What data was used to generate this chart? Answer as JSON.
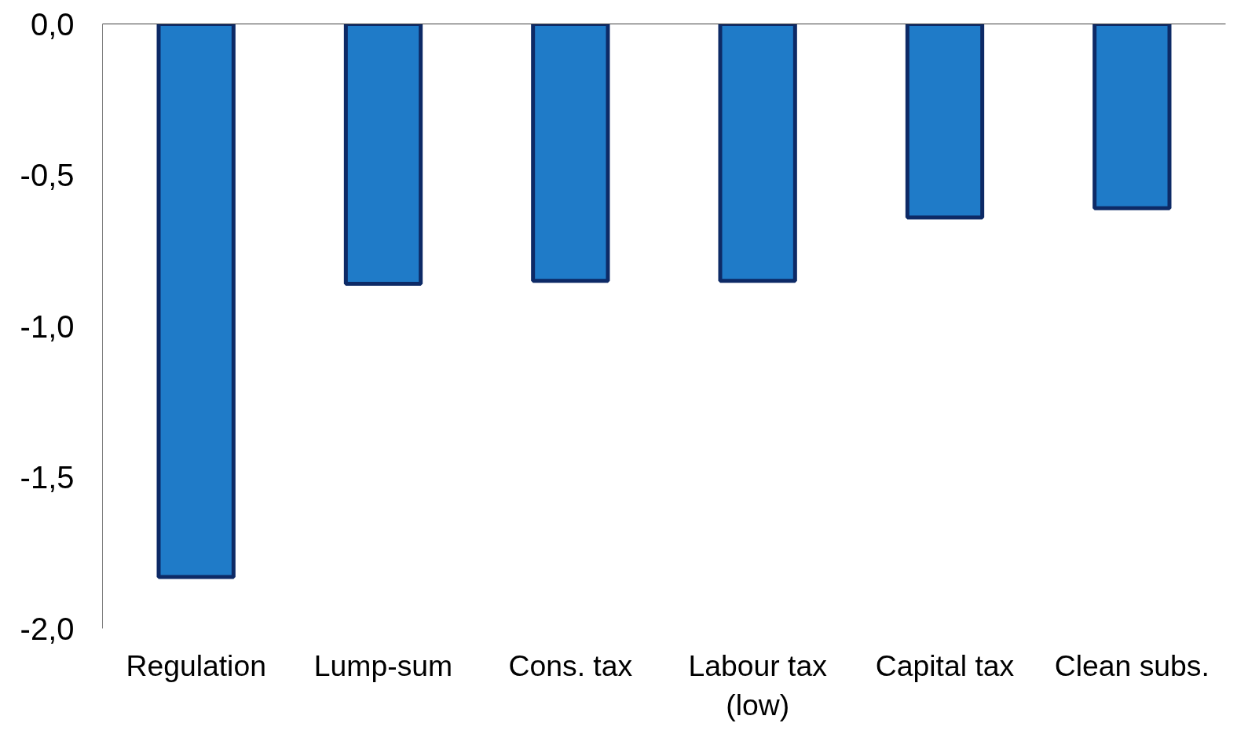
{
  "chart_data": {
    "type": "bar",
    "categories": [
      "Regulation",
      "Lump-sum",
      "Cons. tax",
      "Labour tax (low)",
      "Capital tax",
      "Clean subs."
    ],
    "series": [
      {
        "color": "#1f7bc8",
        "values": [
          -1.83,
          -0.86,
          -0.85,
          -0.85,
          -0.64,
          -0.61
        ]
      }
    ],
    "ylim": [
      -2.0,
      0.0
    ],
    "yticks": [
      {
        "value": -2.0,
        "label": "-2,0"
      },
      {
        "value": -1.5,
        "label": "-1,5"
      },
      {
        "value": -1.0,
        "label": "-1,0"
      },
      {
        "value": -0.5,
        "label": "-0,5"
      },
      {
        "value": 0.0,
        "label": "0,0"
      }
    ],
    "grid": false
  }
}
